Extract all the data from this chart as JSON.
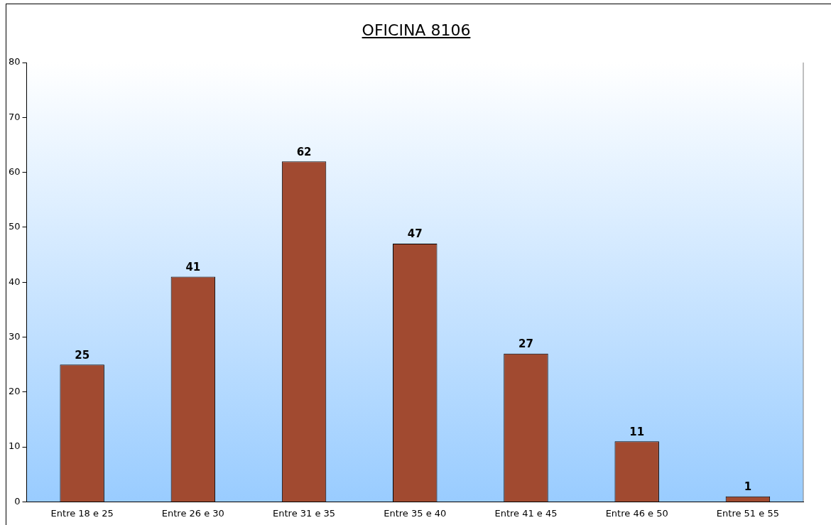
{
  "chart_data": {
    "type": "bar",
    "title": "OFICINA 8106",
    "categories": [
      "Entre 18 e 25",
      "Entre 26 e 30",
      "Entre 31 e 35",
      "Entre 35 e 40",
      "Entre 41 e 45",
      "Entre 46 e 50",
      "Entre 51 e 55"
    ],
    "values": [
      25,
      41,
      62,
      47,
      27,
      11,
      1
    ],
    "color": "#a14a30",
    "ylim": [
      0,
      80
    ],
    "yticks": [
      0,
      10,
      20,
      30,
      40,
      50,
      60,
      70,
      80
    ],
    "grid": false,
    "legend": false,
    "data_labels": true
  }
}
